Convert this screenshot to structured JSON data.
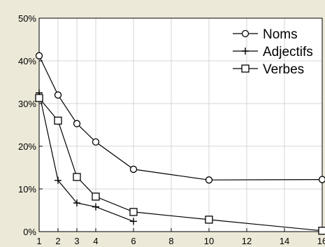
{
  "chart_data": {
    "type": "line",
    "title": "",
    "xlabel": "",
    "ylabel": "",
    "xlim": [
      1,
      16
    ],
    "ylim": [
      0,
      50
    ],
    "x_ticks": [
      1,
      2,
      3,
      4,
      6,
      8,
      10,
      12,
      14,
      16
    ],
    "x_tick_labels": [
      "1",
      "2",
      "3",
      "4",
      "6",
      "8",
      "10",
      "12",
      "14",
      "16"
    ],
    "y_ticks": [
      0,
      10,
      20,
      30,
      40,
      50
    ],
    "y_tick_labels": [
      "0%",
      "10%",
      "20%",
      "30%",
      "40%",
      "50%"
    ],
    "grid": true,
    "legend_position": "top-right",
    "series": [
      {
        "name": "Noms",
        "marker": "circle",
        "x": [
          1,
          2,
          3,
          4,
          6,
          10,
          16
        ],
        "y": [
          41.2,
          32,
          25.3,
          21,
          14.6,
          12.1,
          12.2
        ]
      },
      {
        "name": "Adjectifs",
        "marker": "plus",
        "x": [
          1,
          2,
          3,
          4,
          6
        ],
        "y": [
          32.5,
          12,
          6.7,
          5.8,
          2.4
        ]
      },
      {
        "name": "Verbes",
        "marker": "square",
        "x": [
          1,
          2,
          3,
          4,
          6,
          10,
          16
        ],
        "y": [
          31.3,
          26,
          12.8,
          8.2,
          4.6,
          2.8,
          0.2
        ]
      }
    ],
    "colors": {
      "plot_background": "#ffffff",
      "page_background": "#ece9d8",
      "line": "#000000",
      "grid": "#d4d4d4"
    }
  }
}
